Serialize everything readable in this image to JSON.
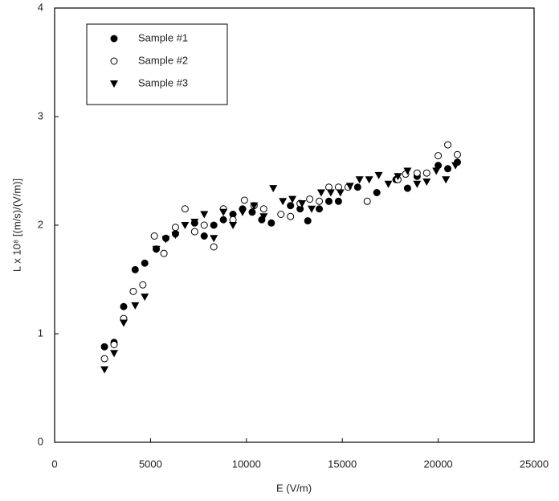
{
  "chart_data": {
    "type": "scatter",
    "x_label": "E (V/m)",
    "y_label": "L x 10⁸ [(m/s)/(V/m)]",
    "xlim": [
      0,
      25000
    ],
    "ylim": [
      0,
      4
    ],
    "xticks": [
      0,
      5000,
      10000,
      15000,
      20000,
      25000
    ],
    "yticks": [
      0,
      1,
      2,
      3,
      4
    ],
    "grid": false,
    "legend": "upper-left",
    "series": [
      {
        "name": "Sample #1",
        "color": "#000000",
        "marker": "filled-circle",
        "x": [
          2600,
          3100,
          3600,
          4200,
          4700,
          5300,
          5800,
          6300,
          7300,
          7800,
          8300,
          8800,
          9300,
          9800,
          10300,
          10800,
          11300,
          12300,
          12800,
          13200,
          13800,
          14300,
          14800,
          15800,
          16800,
          17800,
          18400,
          18900,
          20000,
          20500,
          21000
        ],
        "values": [
          0.88,
          0.92,
          1.25,
          1.59,
          1.65,
          1.78,
          1.88,
          1.92,
          2.02,
          1.9,
          2.0,
          2.05,
          2.1,
          2.15,
          2.12,
          2.05,
          2.02,
          2.18,
          2.15,
          2.04,
          2.15,
          2.22,
          2.22,
          2.35,
          2.3,
          2.42,
          2.34,
          2.45,
          2.55,
          2.52,
          2.58
        ]
      },
      {
        "name": "Sample #2",
        "color": "#000000",
        "marker": "open-circle",
        "x": [
          2600,
          3100,
          3600,
          4100,
          4600,
          5200,
          5700,
          6300,
          6800,
          7300,
          7800,
          8300,
          8800,
          9300,
          9900,
          10400,
          10900,
          11800,
          12300,
          12800,
          13300,
          13800,
          14300,
          14800,
          15300,
          16300,
          17900,
          18300,
          18900,
          19400,
          20000,
          20500,
          21000
        ],
        "values": [
          0.77,
          0.9,
          1.14,
          1.39,
          1.45,
          1.9,
          1.74,
          1.98,
          2.15,
          1.94,
          2.0,
          1.8,
          2.15,
          2.05,
          2.23,
          2.18,
          2.15,
          2.1,
          2.08,
          2.2,
          2.24,
          2.22,
          2.35,
          2.35,
          2.35,
          2.22,
          2.42,
          2.47,
          2.48,
          2.48,
          2.64,
          2.74,
          2.65
        ]
      },
      {
        "name": "Sample #3",
        "color": "#000000",
        "marker": "down-triangle",
        "x": [
          2600,
          3100,
          3600,
          4200,
          4700,
          5300,
          5800,
          6300,
          6800,
          7300,
          7800,
          8300,
          8800,
          9300,
          9800,
          10400,
          10900,
          11400,
          11900,
          12400,
          12900,
          13400,
          13900,
          14400,
          14900,
          15400,
          15900,
          16400,
          16900,
          17400,
          17900,
          18400,
          18900,
          19400,
          19900,
          20400,
          20900
        ],
        "values": [
          0.67,
          0.82,
          1.1,
          1.26,
          1.34,
          1.78,
          1.87,
          1.91,
          2.0,
          2.03,
          2.1,
          1.88,
          2.12,
          2.0,
          2.12,
          2.18,
          2.08,
          2.34,
          2.22,
          2.24,
          2.2,
          2.15,
          2.3,
          2.3,
          2.3,
          2.36,
          2.42,
          2.42,
          2.46,
          2.38,
          2.45,
          2.5,
          2.38,
          2.4,
          2.5,
          2.42,
          2.55
        ]
      }
    ]
  }
}
